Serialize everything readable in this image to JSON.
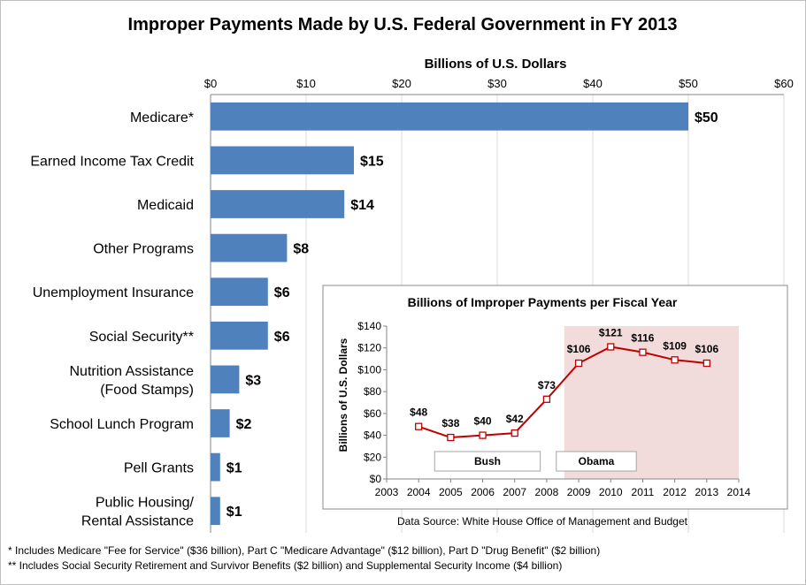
{
  "chart_data": [
    {
      "type": "bar",
      "orientation": "horizontal",
      "title": "Improper Payments Made by U.S. Federal Government in FY 2013",
      "xlabel": "Billions of U.S. Dollars",
      "xlim": [
        0,
        60
      ],
      "ticks": [
        0,
        10,
        20,
        30,
        40,
        50,
        60
      ],
      "tick_labels": [
        "$0",
        "$10",
        "$20",
        "$30",
        "$40",
        "$50",
        "$60"
      ],
      "grid": true,
      "bar_color": "#4f81bd",
      "categories": [
        [
          "Medicare*"
        ],
        [
          "Earned Income Tax Credit"
        ],
        [
          "Medicaid"
        ],
        [
          "Other Programs"
        ],
        [
          "Unemployment Insurance"
        ],
        [
          "Social Security**"
        ],
        [
          "Nutrition Assistance",
          "(Food Stamps)"
        ],
        [
          "School Lunch Program"
        ],
        [
          "Pell Grants"
        ],
        [
          "Public Housing/",
          "Rental Assistance"
        ]
      ],
      "values": [
        50,
        15,
        14,
        8,
        6,
        6,
        3,
        2,
        1,
        1
      ],
      "value_labels": [
        "$50",
        "$15",
        "$14",
        "$8",
        "$6",
        "$6",
        "$3",
        "$2",
        "$1",
        "$1"
      ]
    },
    {
      "type": "line",
      "title": "Billions of Improper Payments per Fiscal Year",
      "ylabel": "Billions of U.S. Dollars",
      "xlim": [
        2003,
        2014
      ],
      "ylim": [
        0,
        140
      ],
      "x_ticks": [
        "2003",
        "2004",
        "2005",
        "2006",
        "2007",
        "2008",
        "2009",
        "2010",
        "2011",
        "2012",
        "2013",
        "2014"
      ],
      "y_ticks": [
        0,
        20,
        40,
        60,
        80,
        100,
        120,
        140
      ],
      "y_tick_labels": [
        "$0",
        "$20",
        "$40",
        "$60",
        "$80",
        "$100",
        "$120",
        "$140"
      ],
      "line_color": "#c00000",
      "shade_color": "#f2dcdb",
      "series": [
        {
          "name": "Improper payments",
          "x": [
            2004,
            2005,
            2006,
            2007,
            2008,
            2009,
            2010,
            2011,
            2012,
            2013
          ],
          "values": [
            48,
            38,
            40,
            42,
            73,
            106,
            121,
            116,
            109,
            106
          ],
          "labels": [
            "$48",
            "$38",
            "$40",
            "$42",
            "$73",
            "$106",
            "$121",
            "$116",
            "$109",
            "$106"
          ]
        }
      ],
      "shaded_range": [
        2008.55,
        2014
      ],
      "eras": [
        {
          "label": "Bush",
          "span": [
            2004.5,
            2007.8
          ]
        },
        {
          "label": "Obama",
          "span": [
            2008.3,
            2010.8
          ]
        }
      ],
      "source": "Data Source: White House Office of Management and Budget"
    }
  ],
  "footnotes": [
    "* Includes Medicare \"Fee for Service\" ($36 billion), Part C \"Medicare Advantage\" ($12 billion), Part D \"Drug Benefit\" ($2 billion)",
    "** Includes Social Security Retirement and Survivor Benefits ($2 billion) and Supplemental Security Income ($4 billion)"
  ]
}
